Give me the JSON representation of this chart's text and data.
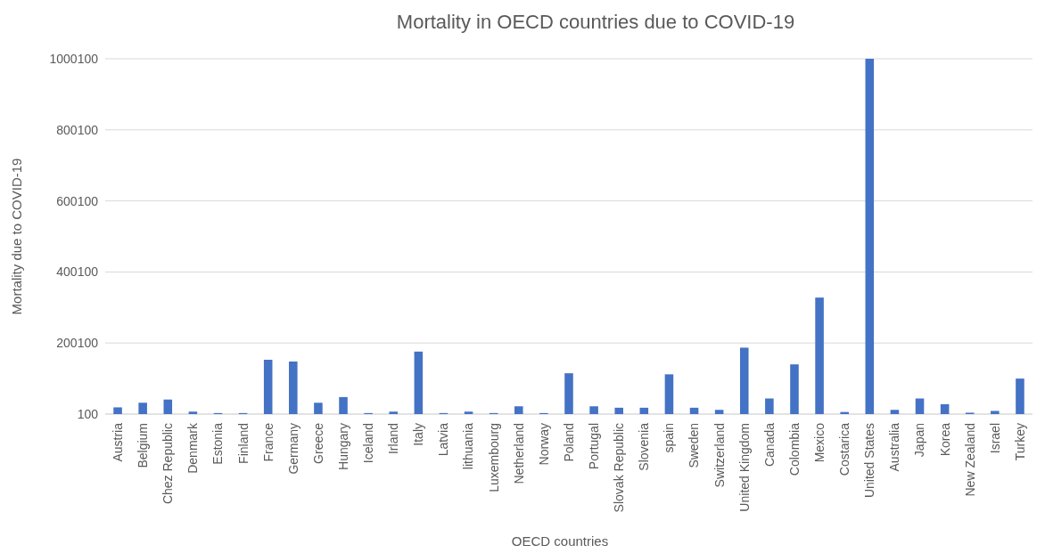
{
  "chart_data": {
    "type": "bar",
    "title": "Mortality in OECD countries due to COVID-19",
    "xlabel": "OECD countries",
    "ylabel": "Mortality due to COVID-19",
    "categories": [
      "Austria",
      "Belgium",
      "Chez Republic",
      "Denmark",
      "Estonia",
      "Finland",
      "France",
      "Germany",
      "Greece",
      "Hungary",
      "Iceland",
      "Irland",
      "Italy",
      "Latvia",
      "lithuania",
      "Luxembourg",
      "Netherland",
      "Norway",
      "Poland",
      "Portugal",
      "Slovak Republic",
      "Slovenia",
      "spain",
      "Sweden",
      "Switzerland",
      "United Kingdom",
      "Canada",
      "Colombia",
      "Mexico",
      "Costarica",
      "United States",
      "Australia",
      "Japan",
      "Korea",
      "New Zealand",
      "Israel",
      "Turkey"
    ],
    "values": [
      19000,
      32000,
      41000,
      7000,
      3000,
      3000,
      153000,
      148000,
      32000,
      48000,
      3000,
      7000,
      176000,
      3000,
      7000,
      3000,
      22000,
      3000,
      115000,
      22000,
      18000,
      18000,
      112000,
      18000,
      12000,
      187000,
      44000,
      140000,
      328000,
      6000,
      1000100,
      12000,
      44000,
      28000,
      4000,
      9000,
      100000
    ],
    "color": "#4472c4",
    "ylim": [
      100,
      1000100
    ],
    "yticks": [
      100,
      200100,
      400100,
      600100,
      800100,
      1000100
    ],
    "grid": "y"
  }
}
